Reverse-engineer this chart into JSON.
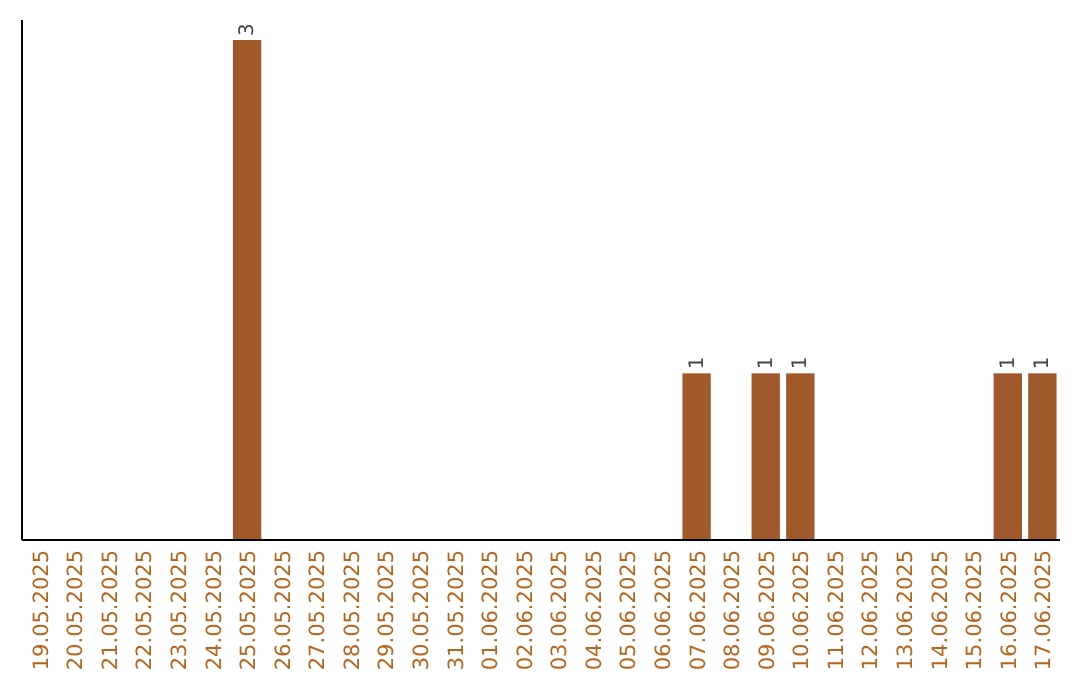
{
  "chart_data": {
    "type": "bar",
    "categories": [
      "19.05.2025",
      "20.05.2025",
      "21.05.2025",
      "22.05.2025",
      "23.05.2025",
      "24.05.2025",
      "25.05.2025",
      "26.05.2025",
      "27.05.2025",
      "28.05.2025",
      "29.05.2025",
      "30.05.2025",
      "31.05.2025",
      "01.06.2025",
      "02.06.2025",
      "03.06.2025",
      "04.06.2025",
      "05.06.2025",
      "06.06.2025",
      "07.06.2025",
      "08.06.2025",
      "09.06.2025",
      "10.06.2025",
      "11.06.2025",
      "12.06.2025",
      "13.06.2025",
      "14.06.2025",
      "15.06.2025",
      "16.06.2025",
      "17.06.2025"
    ],
    "values": [
      0,
      0,
      0,
      0,
      0,
      0,
      3,
      0,
      0,
      0,
      0,
      0,
      0,
      0,
      0,
      0,
      0,
      0,
      0,
      1,
      0,
      1,
      1,
      0,
      0,
      0,
      0,
      0,
      1,
      1
    ],
    "value_labels": [
      null,
      null,
      null,
      null,
      null,
      null,
      "3",
      null,
      null,
      null,
      null,
      null,
      null,
      null,
      null,
      null,
      null,
      null,
      null,
      "1",
      null,
      "1",
      "1",
      null,
      null,
      null,
      null,
      null,
      "1",
      "1"
    ],
    "color": "#a0592a"
  }
}
